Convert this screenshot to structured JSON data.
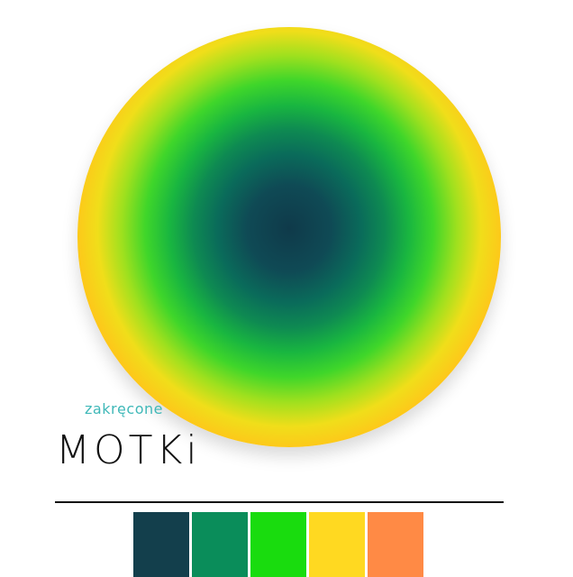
{
  "logo": {
    "small": "zakręcone",
    "big": "MOTKi"
  },
  "palette": [
    "#133f4c",
    "#0a8d5a",
    "#19dc0e",
    "#ffd921",
    "#ff8a45"
  ]
}
